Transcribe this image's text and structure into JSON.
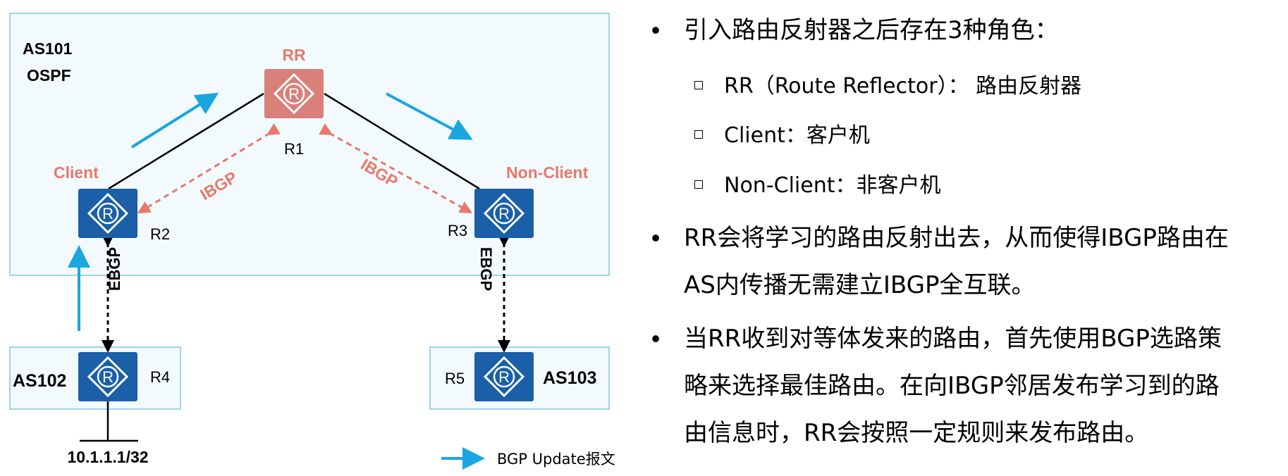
{
  "diagram": {
    "as101_label": "AS101",
    "ospf_label": "OSPF",
    "as102_label": "AS102",
    "as103_label": "AS103",
    "rr_role_label": "RR",
    "client_role_label": "Client",
    "nonclient_role_label": "Non-Client",
    "r1_label": "R1",
    "r2_label": "R2",
    "r3_label": "R3",
    "r4_label": "R4",
    "r5_label": "R5",
    "router_glyph": "R",
    "ibgp_left_label": "IBGP",
    "ibgp_right_label": "IBGP",
    "ebgp_left_label": "EBGP",
    "ebgp_right_label": "EBGP",
    "prefix_label": "10.1.1.1/32",
    "legend_label": "BGP Update报文",
    "colors": {
      "router_blue": "#1a5fa8",
      "router_rr": "#d9807a",
      "role_text": "#e8786a",
      "ibgp_dashed": "#e8786a",
      "update_arrow": "#1aa6e0",
      "as_box_border": "#9fd3e8",
      "as_box_fill": "#f3fafd"
    }
  },
  "text_panel": {
    "bullet1": "引入路由反射器之后存在3种角色：",
    "sub1": "RR（Route Reflector）：  路由反射器",
    "sub2": "Client：客户机",
    "sub3": "Non-Client：非客户机",
    "bullet2_line1": "RR会将学习的路由反射出去，从而使得IBGP路由在",
    "bullet2_line2": "AS内传播无需建立IBGP全互联。",
    "bullet3_line1": "当RR收到对等体发来的路由，首先使用BGP选路策",
    "bullet3_line2": "略来选择最佳路由。在向IBGP邻居发布学习到的路",
    "bullet3_line3": "由信息时，RR会按照一定规则来发布路由。"
  }
}
